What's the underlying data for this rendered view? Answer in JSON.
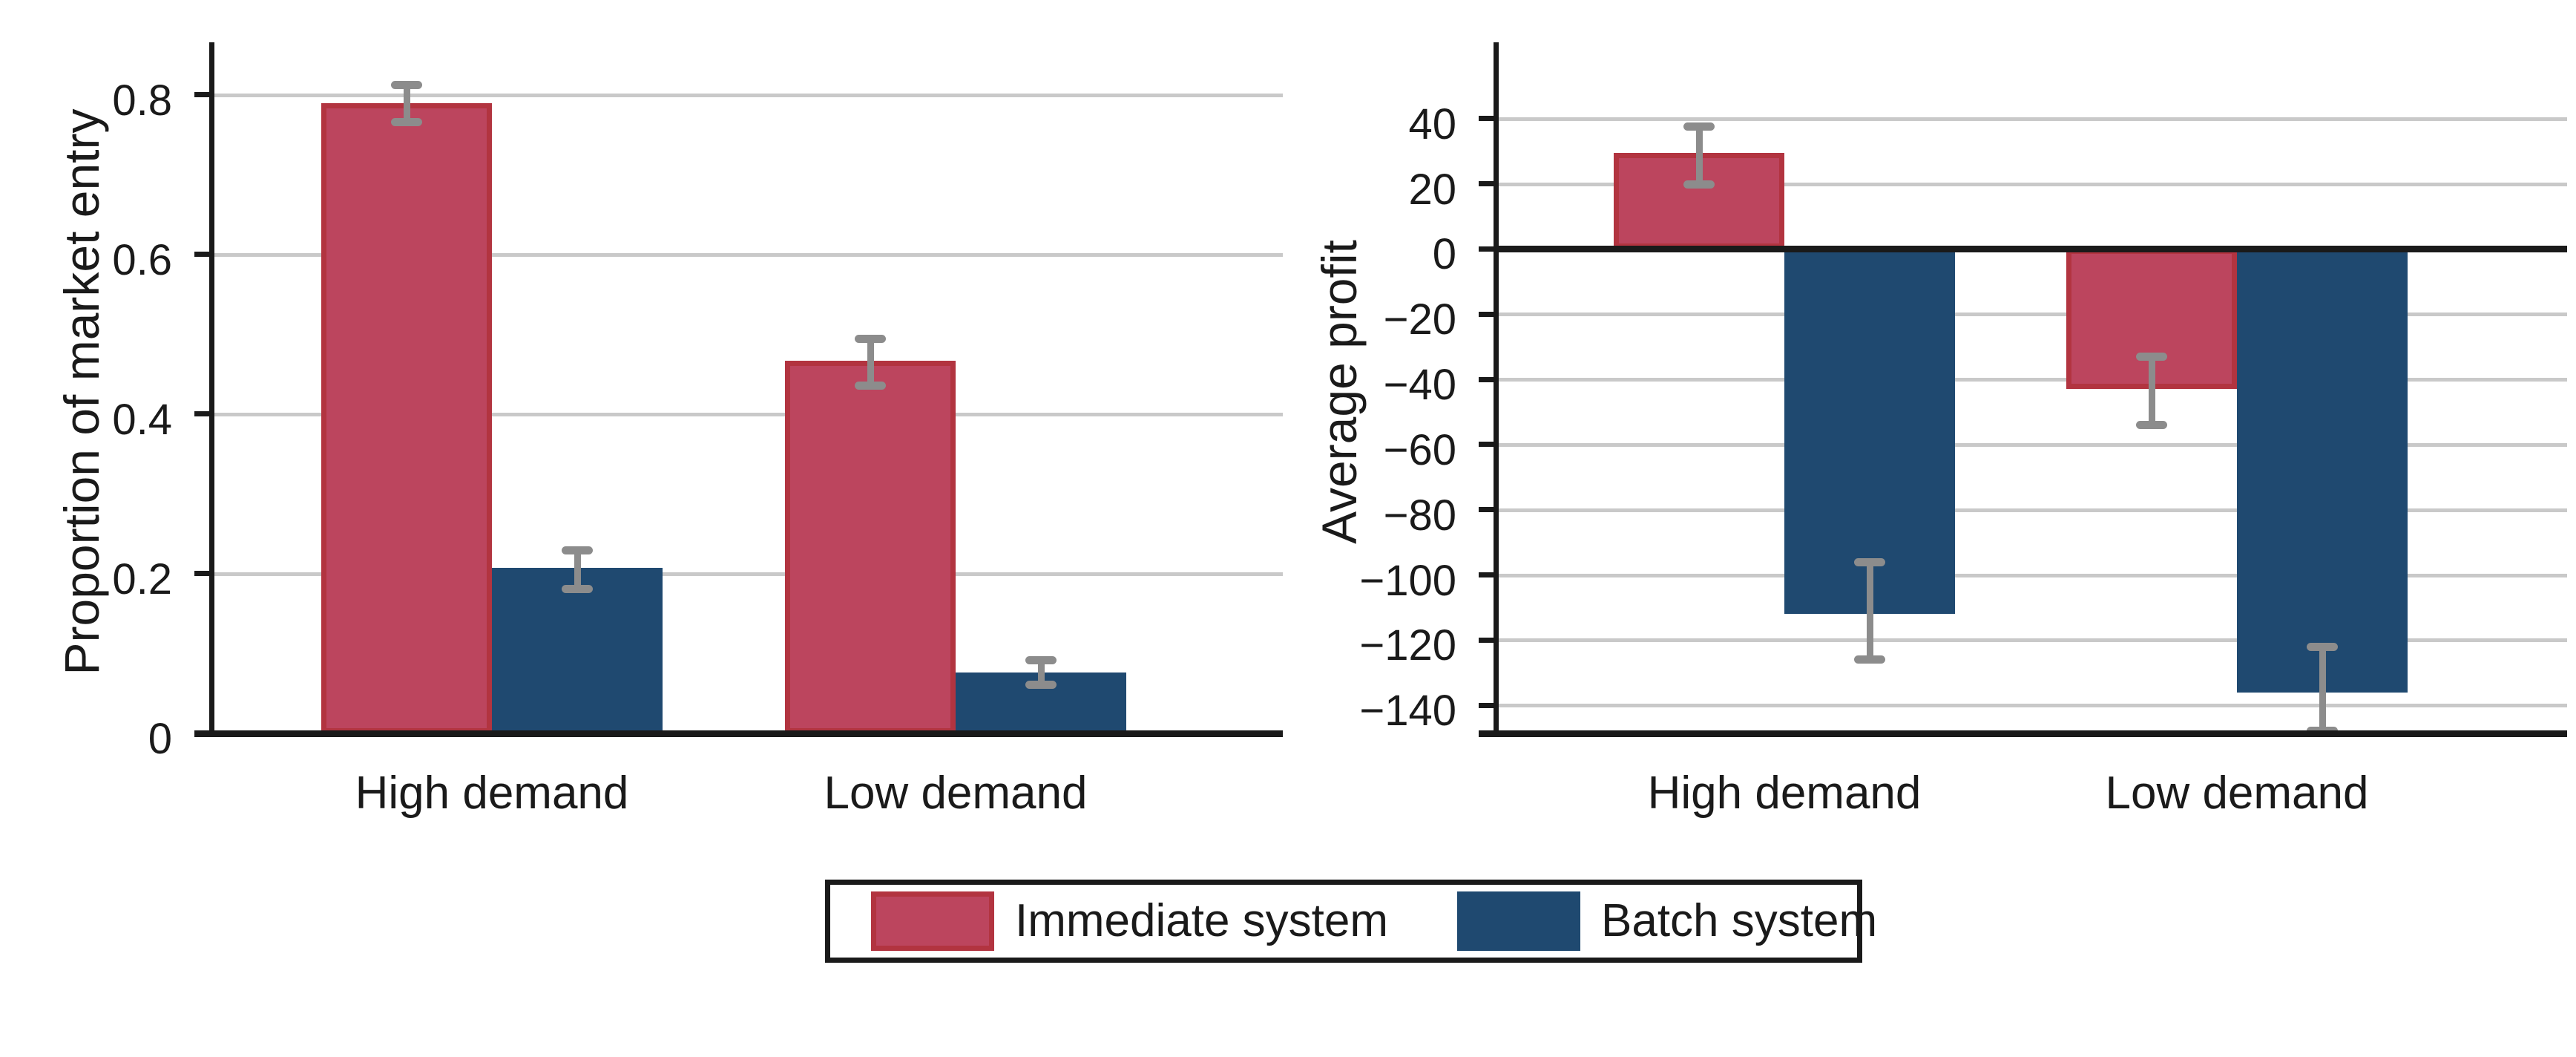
{
  "colors": {
    "immediate_fill": "#BC455E",
    "immediate_border": "#B23440",
    "batch_fill": "#1F4970",
    "gridline": "#C9C9C9",
    "axis": "#1A1A1A",
    "error_bar": "#8C8C8C",
    "text": "#1A1A1A",
    "background": "#FFFFFF"
  },
  "legend": {
    "items": [
      {
        "label": "Immediate system",
        "color": "#BC455E",
        "border": "#B23440"
      },
      {
        "label": "Batch system",
        "color": "#1F4970",
        "border": "#1F4970"
      }
    ]
  },
  "chart_data": [
    {
      "type": "bar",
      "panel": "left",
      "title": "",
      "xlabel": "",
      "ylabel": "Proportion of market entry",
      "categories": [
        "High demand",
        "Low demand"
      ],
      "series": [
        {
          "name": "Immediate system",
          "values": [
            0.79,
            0.467
          ],
          "ci_low": [
            0.766,
            0.435
          ],
          "ci_high": [
            0.813,
            0.495
          ]
        },
        {
          "name": "Batch system",
          "values": [
            0.207,
            0.076
          ],
          "ci_low": [
            0.18,
            0.06
          ],
          "ci_high": [
            0.23,
            0.092
          ]
        }
      ],
      "ylim": [
        0,
        0.866
      ],
      "yticks": [
        {
          "v": 0,
          "label": "0"
        },
        {
          "v": 0.2,
          "label": "0.2"
        },
        {
          "v": 0.4,
          "label": "0.4"
        },
        {
          "v": 0.6,
          "label": "0.6"
        },
        {
          "v": 0.8,
          "label": "0.8"
        }
      ],
      "grid": true,
      "zero_line": false,
      "legend_position": "bottom"
    },
    {
      "type": "bar",
      "panel": "right",
      "title": "",
      "xlabel": "",
      "ylabel": "Average profit",
      "categories": [
        "High demand",
        "Low demand"
      ],
      "series": [
        {
          "name": "Immediate system",
          "values": [
            29.5,
            -43
          ],
          "ci_low": [
            19.6,
            -54
          ],
          "ci_high": [
            37.7,
            -33
          ]
        },
        {
          "name": "Batch system",
          "values": [
            -112,
            -136
          ],
          "ci_low": [
            -126,
            -148
          ],
          "ci_high": [
            -96,
            -122
          ]
        }
      ],
      "ylim": [
        -148.6,
        63.4
      ],
      "yticks": [
        {
          "v": 40,
          "label": "40"
        },
        {
          "v": 20,
          "label": "20"
        },
        {
          "v": 0,
          "label": "0"
        },
        {
          "v": -20,
          "label": "−20"
        },
        {
          "v": -40,
          "label": "−40"
        },
        {
          "v": -60,
          "label": "−60"
        },
        {
          "v": -80,
          "label": "−80"
        },
        {
          "v": -100,
          "label": "−100"
        },
        {
          "v": -120,
          "label": "−120"
        },
        {
          "v": -140,
          "label": "−140"
        }
      ],
      "grid": true,
      "zero_line": true,
      "legend_position": "bottom"
    }
  ]
}
